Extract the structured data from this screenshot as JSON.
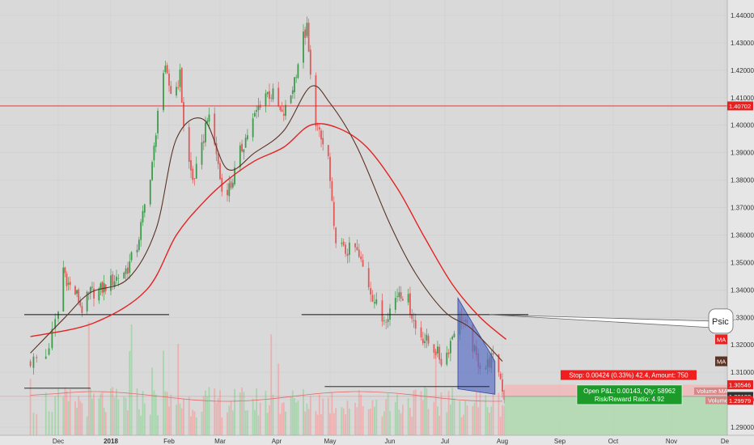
{
  "chart_data": {
    "type": "candlestick",
    "title": "",
    "ylim": [
      1.29,
      1.44
    ],
    "y_ticks": [
      "1.44000",
      "1.43000",
      "1.42000",
      "1.41000",
      "1.40000",
      "1.39000",
      "1.38000",
      "1.37000",
      "1.36000",
      "1.35000",
      "1.34000",
      "1.33000",
      "1.32000",
      "1.31000",
      "1.30000",
      "1.29000"
    ],
    "x_ticks": [
      "Dec",
      "2018",
      "Feb",
      "Mar",
      "Apr",
      "May",
      "Jun",
      "Jul",
      "Aug",
      "Sep",
      "Oct",
      "Nov",
      "De"
    ],
    "grid": true,
    "series": [
      {
        "name": "MA",
        "color": "#e52222",
        "points": [
          [
            "2017-11-22",
            1.323
          ],
          [
            "2017-12-22",
            1.328
          ],
          [
            "2018-01-20",
            1.34
          ],
          [
            "2018-02-05",
            1.36
          ],
          [
            "2018-02-20",
            1.372
          ],
          [
            "2018-03-05",
            1.38
          ],
          [
            "2018-03-20",
            1.387
          ],
          [
            "2018-04-05",
            1.392
          ],
          [
            "2018-04-20",
            1.4
          ],
          [
            "2018-05-05",
            1.399
          ],
          [
            "2018-05-20",
            1.392
          ],
          [
            "2018-06-05",
            1.377
          ],
          [
            "2018-06-20",
            1.359
          ],
          [
            "2018-07-05",
            1.342
          ],
          [
            "2018-07-20",
            1.33
          ],
          [
            "2018-08-03",
            1.322
          ]
        ]
      },
      {
        "name": "MA",
        "color": "#5a3325",
        "points": [
          [
            "2017-11-22",
            1.317
          ],
          [
            "2017-12-05",
            1.33
          ],
          [
            "2017-12-20",
            1.339
          ],
          [
            "2018-01-10",
            1.344
          ],
          [
            "2018-01-25",
            1.362
          ],
          [
            "2018-02-05",
            1.395
          ],
          [
            "2018-02-20",
            1.402
          ],
          [
            "2018-03-05",
            1.384
          ],
          [
            "2018-03-20",
            1.39
          ],
          [
            "2018-04-05",
            1.398
          ],
          [
            "2018-04-20",
            1.414
          ],
          [
            "2018-05-01",
            1.408
          ],
          [
            "2018-05-15",
            1.392
          ],
          [
            "2018-06-01",
            1.364
          ],
          [
            "2018-06-15",
            1.346
          ],
          [
            "2018-07-01",
            1.332
          ],
          [
            "2018-07-15",
            1.326
          ],
          [
            "2018-08-01",
            1.314
          ]
        ]
      }
    ],
    "candle_path": [
      [
        "2017-11-22",
        1.314
      ],
      [
        "2017-11-27",
        1.316
      ],
      [
        "2017-12-01",
        1.332
      ],
      [
        "2017-12-04",
        1.348
      ],
      [
        "2017-12-07",
        1.342
      ],
      [
        "2017-12-12",
        1.338
      ],
      [
        "2017-12-15",
        1.333
      ],
      [
        "2017-12-20",
        1.339
      ],
      [
        "2017-12-26",
        1.34
      ],
      [
        "2017-12-30",
        1.342
      ],
      [
        "2018-01-05",
        1.345
      ],
      [
        "2018-01-10",
        1.348
      ],
      [
        "2018-01-15",
        1.356
      ],
      [
        "2018-01-20",
        1.374
      ],
      [
        "2018-01-25",
        1.395
      ],
      [
        "2018-01-27",
        1.42
      ],
      [
        "2018-01-30",
        1.419
      ],
      [
        "2018-02-03",
        1.41
      ],
      [
        "2018-02-07",
        1.418
      ],
      [
        "2018-02-10",
        1.392
      ],
      [
        "2018-02-14",
        1.38
      ],
      [
        "2018-02-18",
        1.387
      ],
      [
        "2018-02-22",
        1.404
      ],
      [
        "2018-02-27",
        1.39
      ],
      [
        "2018-03-02",
        1.376
      ],
      [
        "2018-03-07",
        1.378
      ],
      [
        "2018-03-12",
        1.39
      ],
      [
        "2018-03-16",
        1.397
      ],
      [
        "2018-03-20",
        1.403
      ],
      [
        "2018-03-25",
        1.412
      ],
      [
        "2018-03-30",
        1.411
      ],
      [
        "2018-04-04",
        1.403
      ],
      [
        "2018-04-08",
        1.408
      ],
      [
        "2018-04-12",
        1.42
      ],
      [
        "2018-04-16",
        1.432
      ],
      [
        "2018-04-18",
        1.435
      ],
      [
        "2018-04-21",
        1.408
      ],
      [
        "2018-04-25",
        1.396
      ],
      [
        "2018-04-30",
        1.388
      ],
      [
        "2018-05-03",
        1.361
      ],
      [
        "2018-05-08",
        1.354
      ],
      [
        "2018-05-14",
        1.355
      ],
      [
        "2018-05-18",
        1.348
      ],
      [
        "2018-05-23",
        1.338
      ],
      [
        "2018-05-28",
        1.329
      ],
      [
        "2018-06-02",
        1.334
      ],
      [
        "2018-06-06",
        1.34
      ],
      [
        "2018-06-11",
        1.336
      ],
      [
        "2018-06-15",
        1.326
      ],
      [
        "2018-06-20",
        1.322
      ],
      [
        "2018-06-26",
        1.318
      ],
      [
        "2018-06-30",
        1.313
      ],
      [
        "2018-07-03",
        1.319
      ],
      [
        "2018-07-06",
        1.326
      ],
      [
        "2018-07-10",
        1.33
      ],
      [
        "2018-07-14",
        1.324
      ],
      [
        "2018-07-18",
        1.315
      ],
      [
        "2018-07-22",
        1.311
      ],
      [
        "2018-07-26",
        1.315
      ],
      [
        "2018-07-30",
        1.311
      ],
      [
        "2018-08-02",
        1.3012
      ]
    ],
    "volume_label": "Volume",
    "volume_ma_label": "Volume MA",
    "horizontal_levels": [
      {
        "price": 1.40702,
        "label": "1.40702",
        "color": "#e52222"
      },
      {
        "price": 1.331,
        "color": "#111111"
      },
      {
        "price": 1.30546,
        "label": "1.30546",
        "color": "#e52222"
      },
      {
        "price": 1.30122,
        "label": "1.30122",
        "color": "#333333"
      },
      {
        "price": 1.29979,
        "label": "1.29979",
        "color": "#e52222"
      }
    ],
    "right_badges": [
      {
        "label": "MA",
        "price": 1.322,
        "color": "#e52222"
      },
      {
        "label": "MA",
        "price": 1.314,
        "color": "#5a3325"
      }
    ],
    "position": {
      "stop_text": "Stop: 0.00424 (0.33%) 42.4, Amount: 750",
      "pnl_text": "Open P&L: 0.00143, Qty: 58962",
      "rr_text": "Risk/Reward Ratio: 4.92"
    },
    "callout_text": "Psic"
  }
}
